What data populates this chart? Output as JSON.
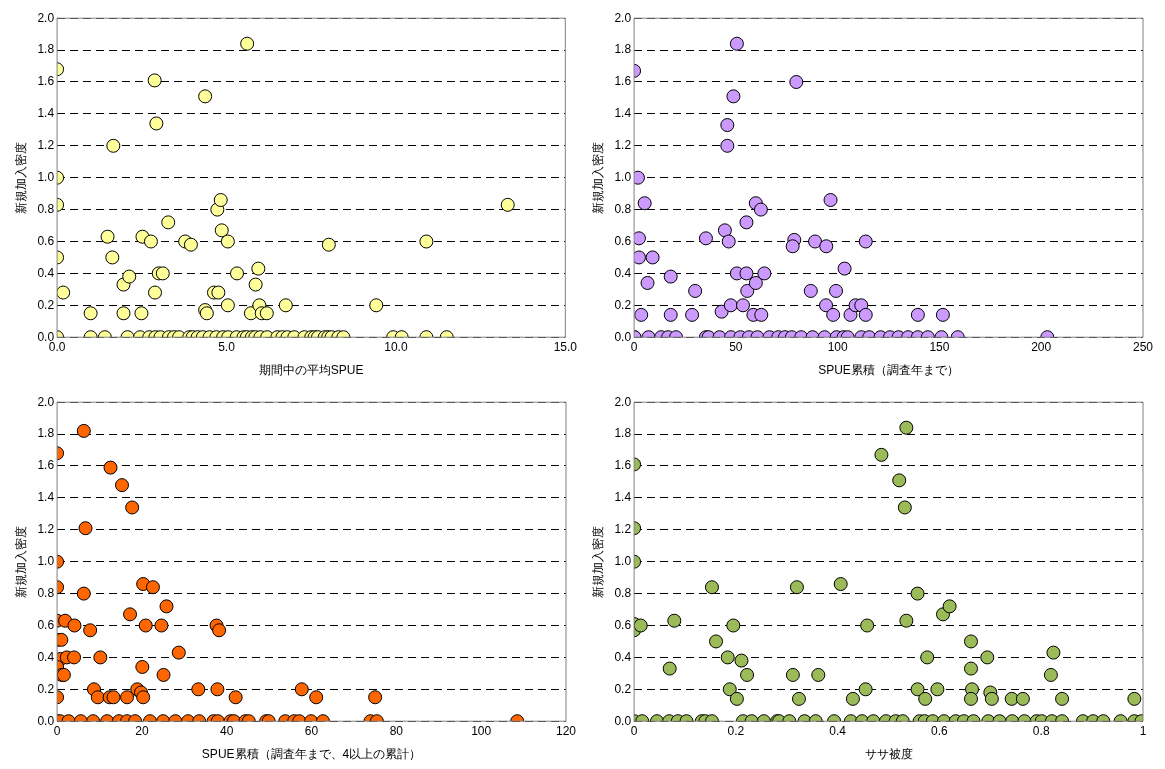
{
  "chart_data": [
    {
      "type": "scatter",
      "xlabel": "期間中の平均SPUE",
      "ylabel": "新規加入密度",
      "color": "#ffff99",
      "marker": "circle",
      "grid": "y",
      "xlim": [
        0,
        15
      ],
      "ylim": [
        0,
        2
      ],
      "xticks": [
        {
          "value": 0,
          "label": "0.0"
        },
        {
          "value": 5,
          "label": "5.0"
        },
        {
          "value": 10,
          "label": "10.0"
        },
        {
          "value": 15,
          "label": "15.0"
        }
      ],
      "yticks": [
        {
          "value": 0,
          "label": "0.0"
        },
        0.2,
        0.4,
        0.6,
        0.8,
        {
          "value": 1,
          "label": "1.0"
        },
        1.2,
        1.4,
        1.6,
        1.8,
        {
          "value": 2,
          "label": "2.0"
        }
      ],
      "x": [
        0,
        0,
        0,
        0,
        0.18,
        0.99,
        1.66,
        1.49,
        1.63,
        1.96,
        2.13,
        1.96,
        2.49,
        2.52,
        2.77,
        2.88,
        2.93,
        2.89,
        3.0,
        3.12,
        3.28,
        3.78,
        3.95,
        4.37,
        4.37,
        4.42,
        4.63,
        4.76,
        4.73,
        4.83,
        4.86,
        5.04,
        5.04,
        5.31,
        5.61,
        5.72,
        5.86,
        5.94,
        5.97,
        6.04,
        6.19,
        6.75,
        8.02,
        9.42,
        10.9,
        13.3,
        0,
        0.99,
        1.41,
        2.08,
        2.45,
        2.72,
        2.9,
        3.05,
        3.3,
        3.45,
        3.6,
        3.9,
        4.0,
        4.15,
        4.3,
        4.5,
        4.7,
        4.9,
        5.05,
        5.3,
        5.5,
        5.6,
        5.75,
        5.85,
        6.0,
        6.2,
        6.5,
        6.65,
        6.8,
        7.0,
        7.3,
        7.5,
        7.6,
        7.7,
        7.9,
        8.0,
        8.1,
        8.3,
        8.45,
        9.92,
        10.17,
        10.9,
        11.5
      ],
      "values": [
        1.68,
        1.0,
        0.83,
        0.5,
        0.28,
        0.15,
        1.2,
        0.63,
        0.5,
        0.33,
        0.38,
        0.15,
        0.15,
        0.63,
        0.6,
        1.61,
        1.34,
        0.28,
        0.4,
        0.4,
        0.72,
        0.6,
        0.58,
        1.51,
        0.17,
        0.15,
        0.28,
        0.28,
        0.8,
        0.86,
        0.67,
        0.6,
        0.2,
        0.4,
        1.84,
        0.15,
        0.33,
        0.43,
        0.2,
        0.15,
        0.15,
        0.2,
        0.58,
        0.2,
        0.6,
        0.83,
        0,
        0,
        0,
        0,
        0,
        0,
        0,
        0,
        0,
        0,
        0,
        0,
        0,
        0,
        0,
        0,
        0,
        0,
        0,
        0,
        0,
        0,
        0,
        0,
        0,
        0,
        0,
        0,
        0,
        0,
        0,
        0,
        0,
        0,
        0,
        0,
        0,
        0,
        0,
        0,
        0,
        0,
        0
      ]
    },
    {
      "type": "scatter",
      "xlabel": "SPUE累積（調査年まで）",
      "ylabel": "新規加入密度",
      "color": "#cc99ff",
      "marker": "circle",
      "grid": "y",
      "xlim": [
        0,
        250
      ],
      "ylim": [
        0,
        2
      ],
      "xticks": [
        0,
        50,
        100,
        150,
        200,
        250
      ],
      "yticks": [
        {
          "value": 0,
          "label": "0.0"
        },
        0.2,
        0.4,
        0.6,
        0.8,
        {
          "value": 1,
          "label": "1.0"
        },
        1.2,
        1.4,
        1.6,
        1.8,
        {
          "value": 2,
          "label": "2.0"
        }
      ],
      "x": [
        0,
        1.9,
        5.2,
        2.4,
        2.4,
        9.1,
        6.6,
        3.5,
        18,
        18,
        30,
        28.5,
        35.3,
        43,
        44.6,
        46.5,
        45.8,
        45.8,
        48.8,
        50.5,
        47.5,
        50.5,
        53.5,
        55.2,
        55.6,
        55.2,
        59.8,
        62.3,
        59.8,
        58.6,
        62.5,
        64,
        79.7,
        78.7,
        77.9,
        86.8,
        88.9,
        94.4,
        94.3,
        97.8,
        96.5,
        99.2,
        103.4,
        106.3,
        108.8,
        111.6,
        113.8,
        113.8,
        139.4,
        151.7,
        0,
        0.2,
        7.1,
        13.3,
        16.7,
        20.6,
        35.3,
        36.6,
        42,
        47.6,
        52.2,
        56.4,
        60.6,
        66.5,
        70.8,
        74.1,
        77.5,
        82.1,
        87.7,
        93.6,
        99.5,
        102.9,
        104.9,
        111.6,
        115.5,
        121.1,
        125.7,
        129.9,
        134.6,
        139.4,
        144.3,
        151,
        159,
        203
      ],
      "values": [
        1.67,
        1.0,
        0.84,
        0.62,
        0.5,
        0.5,
        0.34,
        0.14,
        0.38,
        0.14,
        0.29,
        0.14,
        0.62,
        0.16,
        0.67,
        0.6,
        1.33,
        1.2,
        1.51,
        1.84,
        0.2,
        0.4,
        0.2,
        0.4,
        0.29,
        0.72,
        0.84,
        0.8,
        0.34,
        0.14,
        0.14,
        0.4,
        1.6,
        0.61,
        0.57,
        0.29,
        0.6,
        0.57,
        0.2,
        0.14,
        0.86,
        0.29,
        0.43,
        0.14,
        0.2,
        0.2,
        0.14,
        0.6,
        0.14,
        0.14,
        0,
        0,
        0,
        0,
        0,
        0,
        0,
        0,
        0,
        0,
        0,
        0,
        0,
        0,
        0,
        0,
        0,
        0,
        0,
        0,
        0,
        0,
        0,
        0,
        0,
        0,
        0,
        0,
        0,
        0,
        0,
        0,
        0,
        0
      ]
    },
    {
      "type": "scatter",
      "xlabel": "SPUE累積（調査年まで、4以上の累計）",
      "ylabel": "新規加入密度",
      "color": "#ff6600",
      "marker": "circle",
      "grid": "y",
      "xlim": [
        0,
        120
      ],
      "ylim": [
        0,
        2
      ],
      "xticks": [
        0,
        20,
        40,
        60,
        80,
        100,
        120
      ],
      "yticks": [
        {
          "value": 0,
          "label": "0.0"
        },
        0.2,
        0.4,
        0.6,
        0.8,
        {
          "value": 1,
          "label": "1.0"
        },
        1.2,
        1.4,
        1.6,
        1.8,
        {
          "value": 2,
          "label": "2.0"
        }
      ],
      "x": [
        0,
        6.3,
        12.6,
        15.3,
        17.7,
        6.7,
        0,
        0,
        6.3,
        0,
        1.9,
        4.1,
        7.8,
        0,
        1.0,
        0.8,
        2.3,
        4.0,
        10.2,
        0,
        1.1,
        1.6,
        0,
        8.7,
        9.6,
        12.4,
        13.3,
        16.5,
        17.2,
        20.3,
        22.6,
        20.9,
        25.8,
        24.6,
        18.9,
        19.8,
        20.3,
        20.1,
        25.1,
        28.7,
        33.3,
        37.6,
        38.2,
        37.8,
        42.1,
        57.7,
        61.1,
        75,
        0,
        0.7,
        2.7,
        5.6,
        8.5,
        11.8,
        14.6,
        16.5,
        18.4,
        21.9,
        25,
        27.9,
        30.9,
        33.5,
        36.9,
        37.9,
        40.9,
        41.7,
        44.4,
        45.2,
        49.3,
        49.9,
        53.8,
        55.9,
        57.1,
        59.9,
        62.7,
        73.9,
        75.4,
        108.5
      ],
      "values": [
        1.68,
        1.82,
        1.59,
        1.48,
        1.34,
        1.21,
        1.0,
        0.84,
        0.8,
        0.63,
        0.63,
        0.6,
        0.57,
        0.51,
        0.51,
        0.39,
        0.4,
        0.4,
        0.4,
        0.34,
        0.29,
        0.29,
        0.15,
        0.2,
        0.15,
        0.15,
        0.15,
        0.15,
        0.67,
        0.86,
        0.84,
        0.6,
        0.72,
        0.6,
        0.2,
        0.18,
        0.15,
        0.34,
        0.29,
        0.43,
        0.2,
        0.6,
        0.57,
        0.2,
        0.15,
        0.2,
        0.15,
        0.15,
        0,
        0,
        0,
        0,
        0,
        0,
        0,
        0,
        0,
        0,
        0,
        0,
        0,
        0,
        0,
        0,
        0,
        0,
        0,
        0,
        0,
        0,
        0,
        0,
        0,
        0,
        0,
        0,
        0,
        0
      ]
    },
    {
      "type": "scatter",
      "xlabel": "ササ被度",
      "ylabel": "新規加入密度",
      "color": "#9bbb59",
      "marker": "circle",
      "grid": "y",
      "xlim": [
        0,
        1
      ],
      "ylim": [
        0,
        2
      ],
      "xticks": [
        0,
        0.2,
        0.4,
        0.6,
        0.8,
        1
      ],
      "yticks": [
        {
          "value": 0,
          "label": "0.0"
        },
        0.2,
        0.4,
        0.6,
        0.8,
        {
          "value": 1,
          "label": "1.0"
        },
        1.2,
        1.4,
        1.6,
        1.8,
        {
          "value": 2,
          "label": "2.0"
        }
      ],
      "x": [
        0,
        0,
        0,
        0,
        0,
        0.013,
        0.07,
        0.079,
        0.153,
        0.161,
        0.184,
        0.188,
        0.195,
        0.202,
        0.211,
        0.222,
        0.312,
        0.32,
        0.324,
        0.362,
        0.406,
        0.43,
        0.455,
        0.458,
        0.486,
        0.521,
        0.532,
        0.535,
        0.535,
        0.557,
        0.557,
        0.572,
        0.576,
        0.596,
        0.607,
        0.62,
        0.662,
        0.662,
        0.664,
        0.662,
        0.694,
        0.7,
        0.703,
        0.742,
        0.764,
        0.819,
        0.824,
        0.841,
        0.983,
        0,
        0.016,
        0.045,
        0.069,
        0.086,
        0.103,
        0.133,
        0.14,
        0.153,
        0.214,
        0.231,
        0.255,
        0.281,
        0.285,
        0.305,
        0.335,
        0.357,
        0.393,
        0.426,
        0.448,
        0.47,
        0.495,
        0.514,
        0.528,
        0.561,
        0.571,
        0.587,
        0.609,
        0.632,
        0.648,
        0.667,
        0.696,
        0.718,
        0.743,
        0.767,
        0.791,
        0.801,
        0.821,
        0.841,
        0.882,
        0.902,
        0.922,
        0.956,
        0.983,
        0.997
      ],
      "values": [
        1.61,
        1.21,
        1.0,
        0.61,
        0.57,
        0.6,
        0.33,
        0.63,
        0.84,
        0.5,
        0.4,
        0.2,
        0.6,
        0.14,
        0.38,
        0.29,
        0.29,
        0.84,
        0.14,
        0.29,
        0.86,
        0.14,
        0.2,
        0.6,
        1.67,
        1.51,
        1.34,
        1.84,
        0.63,
        0.8,
        0.2,
        0.14,
        0.4,
        0.2,
        0.67,
        0.72,
        0.5,
        0.33,
        0.2,
        0.14,
        0.4,
        0.18,
        0.14,
        0.14,
        0.14,
        0.29,
        0.43,
        0.14,
        0.14,
        0,
        0,
        0,
        0,
        0,
        0,
        0,
        0,
        0,
        0,
        0,
        0,
        0,
        0,
        0,
        0,
        0,
        0,
        0,
        0,
        0,
        0,
        0,
        0,
        0,
        0,
        0,
        0,
        0,
        0,
        0,
        0,
        0,
        0,
        0,
        0,
        0,
        0,
        0,
        0,
        0,
        0,
        0,
        0,
        0
      ]
    }
  ]
}
